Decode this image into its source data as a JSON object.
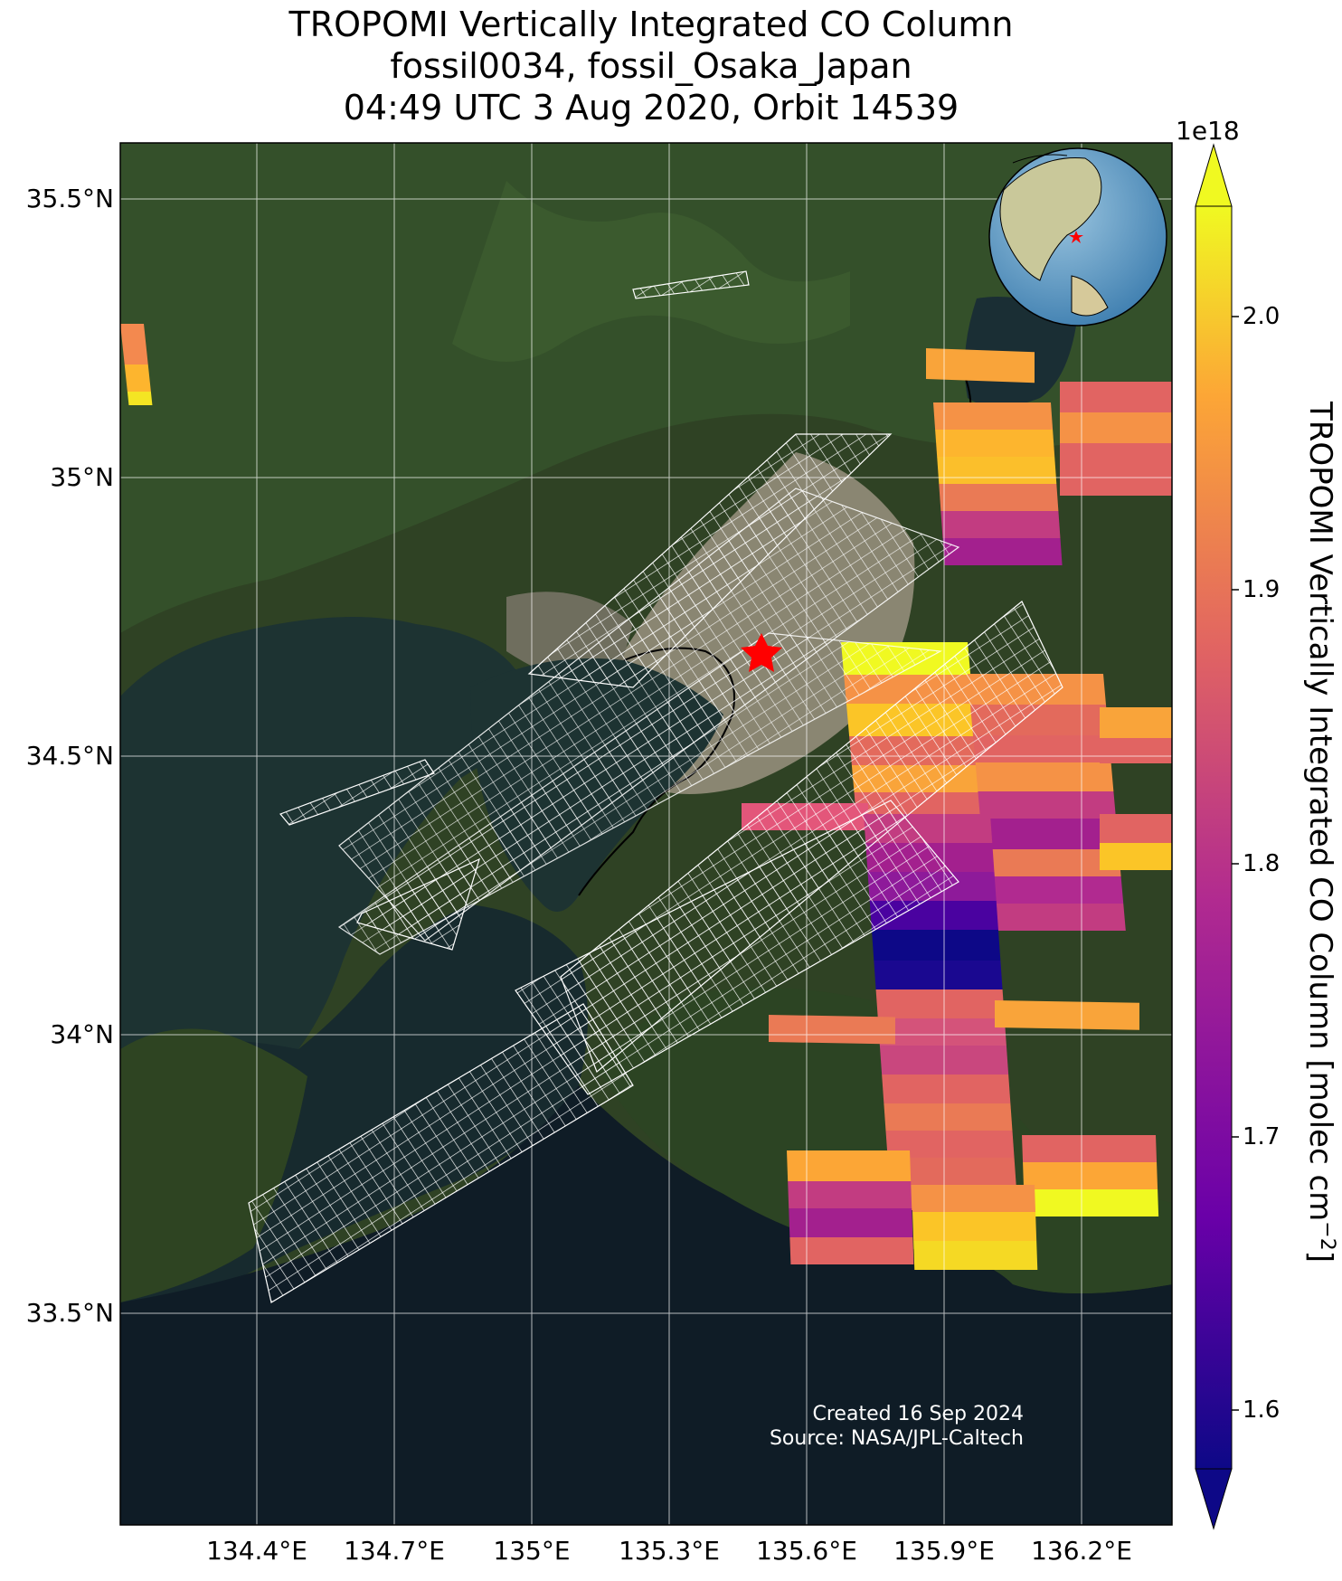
{
  "title": {
    "line1": "TROPOMI Vertically Integrated CO Column",
    "line2": "fossil0034, fossil_Osaka_Japan",
    "line3": "04:49 UTC 3 Aug 2020, Orbit 14539"
  },
  "axes": {
    "y_ticks": [
      "35.5°N",
      "35°N",
      "34.5°N",
      "34°N",
      "33.5°N"
    ],
    "x_ticks": [
      "134.4°E",
      "134.7°E",
      "135°E",
      "135.3°E",
      "135.6°E",
      "135.9°E",
      "136.2°E"
    ]
  },
  "colorbar": {
    "scale_label": "1e18",
    "ticks": [
      "2.0",
      "1.9",
      "1.8",
      "1.7",
      "1.6"
    ],
    "label": "TROPOMI Vertically Integrated CO Column [molec cm",
    "label_sup": "−2",
    "label_end": "]",
    "colors": [
      "#0d0887",
      "#6a00a8",
      "#b12a90",
      "#e16462",
      "#fca636",
      "#f0f921"
    ]
  },
  "credits": {
    "line1": "Created 16 Sep 2024",
    "line2": "Source: NASA/JPL-Caltech"
  },
  "site_marker": {
    "lon": 135.5,
    "lat": 34.69,
    "color": "#ff0000"
  }
}
